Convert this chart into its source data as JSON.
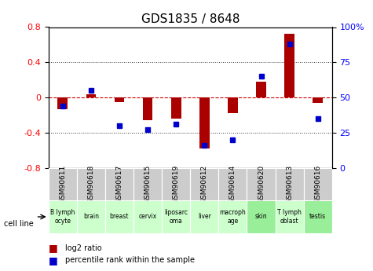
{
  "title": "GDS1835 / 8648",
  "samples": [
    "GSM90611",
    "GSM90618",
    "GSM90617",
    "GSM90615",
    "GSM90619",
    "GSM90612",
    "GSM90614",
    "GSM90620",
    "GSM90613",
    "GSM90616"
  ],
  "cell_lines": [
    "B lymph\nocyte",
    "brain",
    "breast",
    "cervix",
    "liposarc\noma",
    "liver",
    "macroph\nage",
    "skin",
    "T lymph\noblast",
    "testis"
  ],
  "cell_line_colors": [
    "#ccffcc",
    "#ccffcc",
    "#ccffcc",
    "#ccffcc",
    "#ccffcc",
    "#ccffcc",
    "#ccffcc",
    "#99ee99",
    "#ccffcc",
    "#99ee99"
  ],
  "log2_ratio": [
    -0.13,
    0.04,
    -0.05,
    -0.26,
    -0.24,
    -0.58,
    -0.18,
    0.18,
    0.72,
    -0.06
  ],
  "percentile_rank": [
    44,
    55,
    30,
    27,
    31,
    16,
    20,
    65,
    88,
    35
  ],
  "ylim_left": [
    -0.8,
    0.8
  ],
  "ylim_right": [
    0,
    100
  ],
  "bar_color": "#aa0000",
  "dot_color": "#0000cc",
  "zero_line_color": "#cc0000",
  "grid_color": "#333333",
  "yticks_left": [
    -0.8,
    -0.4,
    0.0,
    0.4,
    0.8
  ],
  "yticks_right": [
    0,
    25,
    50,
    75,
    100
  ],
  "legend_labels": [
    "log2 ratio",
    "percentile rank within the sample"
  ]
}
